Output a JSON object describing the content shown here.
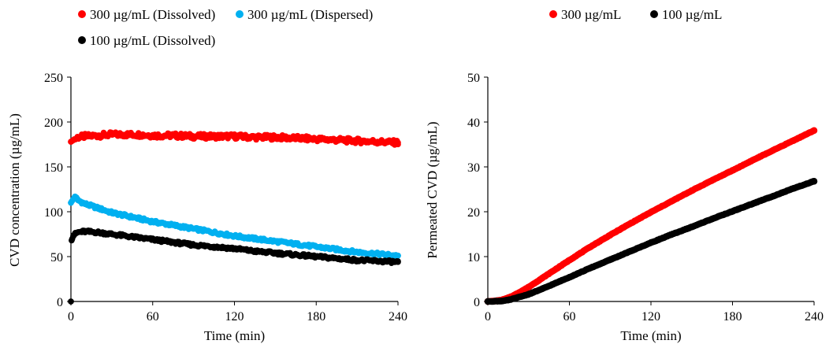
{
  "chart_data": [
    {
      "type": "scatter",
      "xlabel": "Time (min)",
      "ylabel": "CVD concentration (µg/mL)",
      "xlim": [
        0,
        240
      ],
      "ylim": [
        0,
        250
      ],
      "xticks": [
        "0",
        "60",
        "120",
        "180",
        "240"
      ],
      "yticks": [
        "0",
        "50",
        "100",
        "150",
        "200",
        "250"
      ],
      "grid": false,
      "legend_position": "top",
      "series": [
        {
          "name": "300 µg/mL (Dissolved)",
          "color": "#ff0000",
          "x": [
            0,
            5,
            10,
            20,
            30,
            40,
            50,
            60,
            75,
            90,
            105,
            120,
            135,
            150,
            165,
            180,
            195,
            210,
            225,
            240
          ],
          "y": [
            178,
            183,
            184,
            185,
            186,
            186,
            186,
            185,
            185,
            184,
            184,
            184,
            183,
            183,
            182,
            181,
            180,
            179,
            178,
            177
          ]
        },
        {
          "name": "300 µg/mL (Dispersed)",
          "color": "#00b0f0",
          "x": [
            0,
            3,
            5,
            10,
            20,
            30,
            45,
            60,
            75,
            90,
            105,
            120,
            135,
            150,
            165,
            180,
            195,
            210,
            225,
            240
          ],
          "y": [
            110,
            117,
            113,
            109,
            104,
            99,
            94,
            89,
            85,
            81,
            77,
            73,
            70,
            67,
            64,
            61,
            58,
            55,
            53,
            51
          ]
        },
        {
          "name": "100 µg/mL (Dissolved)",
          "color": "#000000",
          "x": [
            0,
            0.5,
            1,
            2,
            5,
            10,
            20,
            30,
            45,
            60,
            75,
            90,
            105,
            120,
            135,
            150,
            165,
            180,
            195,
            210,
            225,
            240
          ],
          "y": [
            0,
            68,
            70,
            74,
            77,
            78,
            77,
            75,
            72,
            69,
            66,
            63,
            61,
            59,
            56,
            54,
            52,
            50,
            48,
            46,
            45,
            44
          ]
        }
      ]
    },
    {
      "type": "scatter",
      "xlabel": "Time (min)",
      "ylabel": "Permeated CVD (µg/mL)",
      "xlim": [
        0,
        240
      ],
      "ylim": [
        0,
        50
      ],
      "xticks": [
        "0",
        "60",
        "120",
        "180",
        "240"
      ],
      "yticks": [
        "0",
        "10",
        "20",
        "30",
        "40",
        "50"
      ],
      "grid": false,
      "legend_position": "top",
      "series": [
        {
          "name": "300 µg/mL",
          "color": "#ff0000",
          "x": [
            0,
            5,
            10,
            15,
            20,
            30,
            40,
            50,
            60,
            75,
            90,
            105,
            120,
            135,
            150,
            165,
            180,
            195,
            210,
            225,
            240
          ],
          "y": [
            0,
            0.1,
            0.3,
            0.8,
            1.5,
            3.2,
            5.2,
            7.2,
            9.2,
            12.1,
            14.8,
            17.4,
            19.9,
            22.3,
            24.7,
            27.0,
            29.2,
            31.5,
            33.7,
            35.9,
            38.1
          ]
        },
        {
          "name": "100 µg/mL",
          "color": "#000000",
          "x": [
            0,
            5,
            10,
            15,
            20,
            30,
            40,
            50,
            60,
            75,
            90,
            105,
            120,
            135,
            150,
            165,
            180,
            195,
            210,
            225,
            240
          ],
          "y": [
            0,
            0.05,
            0.1,
            0.3,
            0.7,
            1.6,
            2.8,
            4.1,
            5.4,
            7.4,
            9.3,
            11.2,
            13.1,
            14.9,
            16.6,
            18.4,
            20.1,
            21.8,
            23.5,
            25.2,
            26.8
          ]
        }
      ]
    }
  ]
}
